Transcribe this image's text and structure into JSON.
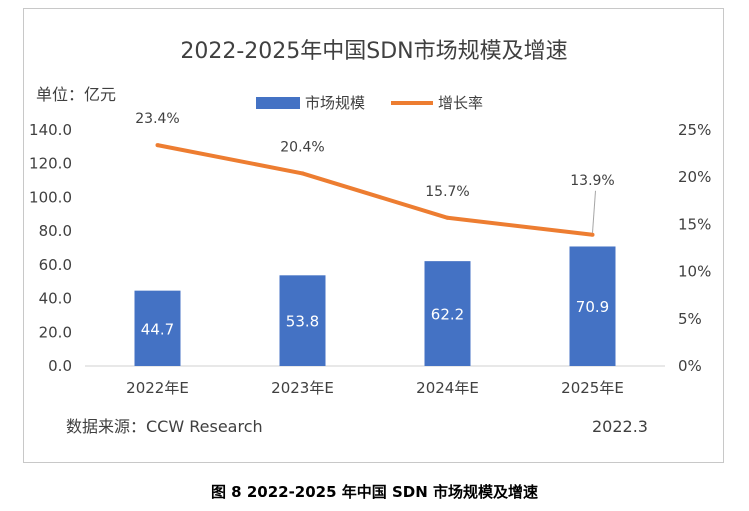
{
  "caption": "图 8 2022-2025 年中国 SDN 市场规模及增速",
  "chart_data": {
    "type": "bar",
    "title": "2022-2025年中国SDN市场规模及增速",
    "unit_label": "单位：亿元",
    "source": "数据来源：CCW Research",
    "date": "2022.3",
    "categories": [
      "2022年E",
      "2023年E",
      "2024年E",
      "2025年E"
    ],
    "series": [
      {
        "name": "市场规模",
        "type": "bar",
        "color": "#4472C4",
        "values": [
          44.7,
          53.8,
          62.2,
          70.9
        ],
        "labels": [
          "44.7",
          "53.8",
          "62.2",
          "70.9"
        ]
      },
      {
        "name": "增长率",
        "type": "line",
        "axis": "right",
        "color": "#ED7D31",
        "values": [
          23.4,
          20.4,
          15.7,
          13.9
        ],
        "labels": [
          "23.4%",
          "20.4%",
          "15.7%",
          "13.9%"
        ]
      }
    ],
    "left_axis": {
      "ylim": [
        0,
        140
      ],
      "ticks": [
        "0.0",
        "20.0",
        "40.0",
        "60.0",
        "80.0",
        "100.0",
        "120.0",
        "140.0"
      ]
    },
    "right_axis": {
      "ylim": [
        0,
        25
      ],
      "ticks": [
        "0%",
        "5%",
        "10%",
        "15%",
        "20%",
        "25%"
      ]
    },
    "legend": "top-center",
    "grid": false
  }
}
